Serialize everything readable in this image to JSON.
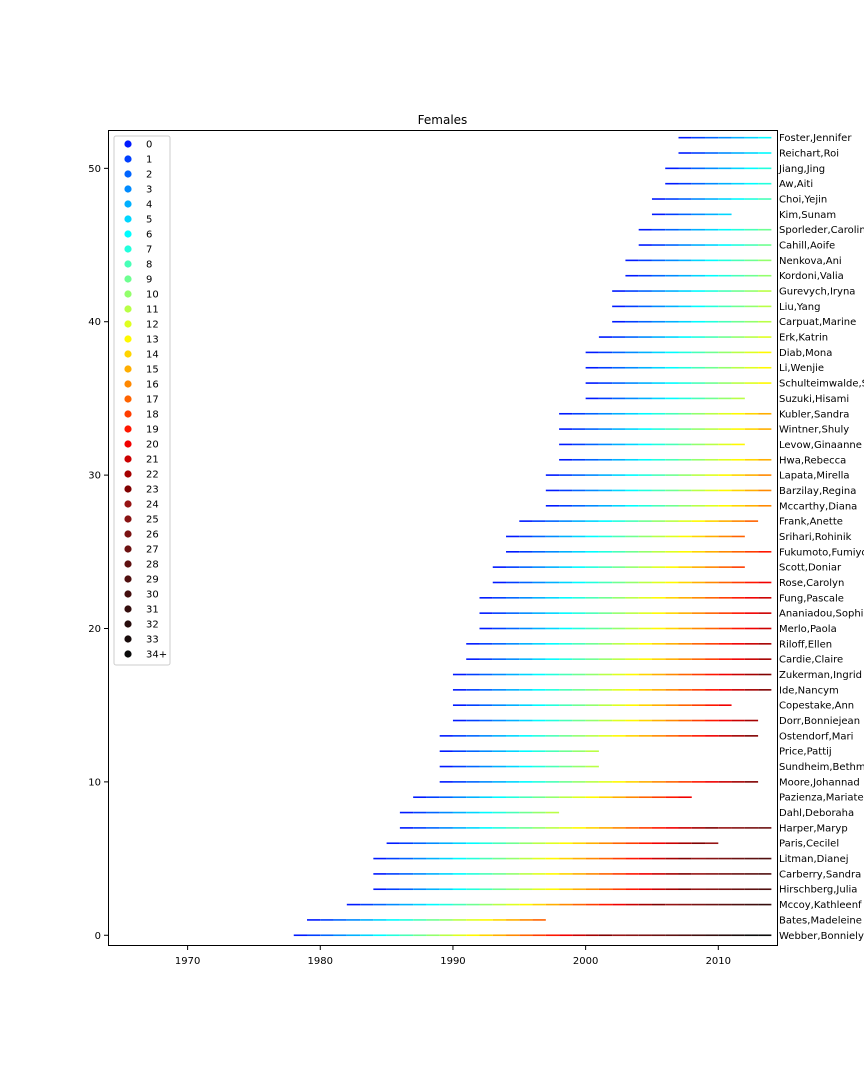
{
  "chart_data": {
    "type": "timeline",
    "title": "Females",
    "xlim": [
      1964,
      2014.5
    ],
    "ylim": [
      -0.7,
      52.5
    ],
    "x_ticks": [
      1970,
      1980,
      1990,
      2000,
      2010
    ],
    "y_ticks": [
      0,
      10,
      20,
      30,
      40,
      50
    ],
    "legend_position": "top-left",
    "legend_labels": [
      "0",
      "1",
      "2",
      "3",
      "4",
      "5",
      "6",
      "7",
      "8",
      "9",
      "10",
      "11",
      "12",
      "13",
      "14",
      "15",
      "16",
      "17",
      "18",
      "19",
      "20",
      "21",
      "22",
      "23",
      "24",
      "25",
      "26",
      "27",
      "28",
      "29",
      "30",
      "31",
      "32",
      "33",
      "34+"
    ],
    "series": [
      {
        "name": "Webber,Bonnielynn",
        "y": 0,
        "start": 1978,
        "end": 2014
      },
      {
        "name": "Bates,Madeleine",
        "y": 1,
        "start": 1979,
        "end": 1997
      },
      {
        "name": "Mccoy,Kathleenf",
        "y": 2,
        "start": 1982,
        "end": 2014
      },
      {
        "name": "Hirschberg,Julia",
        "y": 3,
        "start": 1984,
        "end": 2014
      },
      {
        "name": "Carberry,Sandra",
        "y": 4,
        "start": 1984,
        "end": 2014
      },
      {
        "name": "Litman,Dianej",
        "y": 5,
        "start": 1984,
        "end": 2014
      },
      {
        "name": "Paris,Cecilel",
        "y": 6,
        "start": 1985,
        "end": 2010
      },
      {
        "name": "Harper,Maryp",
        "y": 7,
        "start": 1986,
        "end": 2014
      },
      {
        "name": "Dahl,Deboraha",
        "y": 8,
        "start": 1986,
        "end": 1998
      },
      {
        "name": "Pazienza,Mariaten",
        "y": 9,
        "start": 1987,
        "end": 2008
      },
      {
        "name": "Moore,Johannad",
        "y": 10,
        "start": 1989,
        "end": 2013
      },
      {
        "name": "Sundheim,Bethm",
        "y": 11,
        "start": 1989,
        "end": 2001
      },
      {
        "name": "Price,Pattij",
        "y": 12,
        "start": 1989,
        "end": 2001
      },
      {
        "name": "Ostendorf,Mari",
        "y": 13,
        "start": 1989,
        "end": 2013
      },
      {
        "name": "Dorr,Bonniejean",
        "y": 14,
        "start": 1990,
        "end": 2013
      },
      {
        "name": "Copestake,Ann",
        "y": 15,
        "start": 1990,
        "end": 2011
      },
      {
        "name": "Ide,Nancym",
        "y": 16,
        "start": 1990,
        "end": 2014
      },
      {
        "name": "Zukerman,Ingrid",
        "y": 17,
        "start": 1990,
        "end": 2014
      },
      {
        "name": "Cardie,Claire",
        "y": 18,
        "start": 1991,
        "end": 2014
      },
      {
        "name": "Riloff,Ellen",
        "y": 19,
        "start": 1991,
        "end": 2014
      },
      {
        "name": "Merlo,Paola",
        "y": 20,
        "start": 1992,
        "end": 2014
      },
      {
        "name": "Ananiadou,Sophia",
        "y": 21,
        "start": 1992,
        "end": 2014
      },
      {
        "name": "Fung,Pascale",
        "y": 22,
        "start": 1992,
        "end": 2014
      },
      {
        "name": "Rose,Carolyn",
        "y": 23,
        "start": 1993,
        "end": 2014
      },
      {
        "name": "Scott,Doniar",
        "y": 24,
        "start": 1993,
        "end": 2012
      },
      {
        "name": "Fukumoto,Fumiyo",
        "y": 25,
        "start": 1994,
        "end": 2014
      },
      {
        "name": "Srihari,Rohinik",
        "y": 26,
        "start": 1994,
        "end": 2012
      },
      {
        "name": "Frank,Anette",
        "y": 27,
        "start": 1995,
        "end": 2013
      },
      {
        "name": "Mccarthy,Diana",
        "y": 28,
        "start": 1997,
        "end": 2014
      },
      {
        "name": "Barzilay,Regina",
        "y": 29,
        "start": 1997,
        "end": 2014
      },
      {
        "name": "Lapata,Mirella",
        "y": 30,
        "start": 1997,
        "end": 2014
      },
      {
        "name": "Hwa,Rebecca",
        "y": 31,
        "start": 1998,
        "end": 2014
      },
      {
        "name": "Levow,Ginaanne",
        "y": 32,
        "start": 1998,
        "end": 2012
      },
      {
        "name": "Wintner,Shuly",
        "y": 33,
        "start": 1998,
        "end": 2014
      },
      {
        "name": "Kubler,Sandra",
        "y": 34,
        "start": 1998,
        "end": 2014
      },
      {
        "name": "Suzuki,Hisami",
        "y": 35,
        "start": 2000,
        "end": 2012
      },
      {
        "name": "Schulteimwalde,S",
        "y": 36,
        "start": 2000,
        "end": 2014
      },
      {
        "name": "Li,Wenjie",
        "y": 37,
        "start": 2000,
        "end": 2014
      },
      {
        "name": "Diab,Mona",
        "y": 38,
        "start": 2000,
        "end": 2014
      },
      {
        "name": "Erk,Katrin",
        "y": 39,
        "start": 2001,
        "end": 2014
      },
      {
        "name": "Carpuat,Marine",
        "y": 40,
        "start": 2002,
        "end": 2014
      },
      {
        "name": "Liu,Yang",
        "y": 41,
        "start": 2002,
        "end": 2014
      },
      {
        "name": "Gurevych,Iryna",
        "y": 42,
        "start": 2002,
        "end": 2014
      },
      {
        "name": "Kordoni,Valia",
        "y": 43,
        "start": 2003,
        "end": 2014
      },
      {
        "name": "Nenkova,Ani",
        "y": 44,
        "start": 2003,
        "end": 2014
      },
      {
        "name": "Cahill,Aoife",
        "y": 45,
        "start": 2004,
        "end": 2014
      },
      {
        "name": "Sporleder,Carolin",
        "y": 46,
        "start": 2004,
        "end": 2014
      },
      {
        "name": "Kim,Sunam",
        "y": 47,
        "start": 2005,
        "end": 2011
      },
      {
        "name": "Choi,Yejin",
        "y": 48,
        "start": 2005,
        "end": 2014
      },
      {
        "name": "Aw,Aiti",
        "y": 49,
        "start": 2006,
        "end": 2014
      },
      {
        "name": "Jiang,Jing",
        "y": 50,
        "start": 2006,
        "end": 2014
      },
      {
        "name": "Reichart,Roi",
        "y": 51,
        "start": 2007,
        "end": 2014
      },
      {
        "name": "Foster,Jennifer",
        "y": 52,
        "start": 2007,
        "end": 2014
      }
    ]
  }
}
